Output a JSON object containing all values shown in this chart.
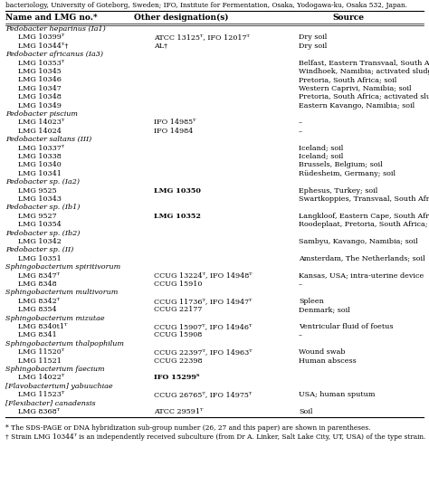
{
  "title_top": "bacteriology, University of Goteborg, Sweden; IFO, Institute for Fermentation, Osaka, Yodogawa-ku, Osaka 532, Japan.",
  "headers": [
    "Name and LMG no.*",
    "Other designation(s)",
    "Source"
  ],
  "rows": [
    {
      "name": "Pedobacter heparinus (Ia1)",
      "italic": true,
      "indent": 0,
      "other": "",
      "other_bold": false,
      "source": ""
    },
    {
      "name": "LMG 10399ᵀ",
      "italic": false,
      "indent": 1,
      "other": "ATCC 13125ᵀ, IFO 12017ᵀ",
      "other_bold": false,
      "source": "Dry soil"
    },
    {
      "name": "LMG 10344ᵀ†",
      "italic": false,
      "indent": 1,
      "other": "AL†",
      "other_bold": false,
      "source": "Dry soil"
    },
    {
      "name": "Pedobacter africanus (Ia3)",
      "italic": true,
      "indent": 0,
      "other": "",
      "other_bold": false,
      "source": ""
    },
    {
      "name": "LMG 10353ᵀ",
      "italic": false,
      "indent": 1,
      "other": "",
      "other_bold": false,
      "source": "Belfast, Eastern Transvaal, South Africa; soil"
    },
    {
      "name": "LMG 10345",
      "italic": false,
      "indent": 1,
      "other": "",
      "other_bold": false,
      "source": "Windhoek, Namibia; activated sludge"
    },
    {
      "name": "LMG 10346",
      "italic": false,
      "indent": 1,
      "other": "",
      "other_bold": false,
      "source": "Pretoria, South Africa; soil"
    },
    {
      "name": "LMG 10347",
      "italic": false,
      "indent": 1,
      "other": "",
      "other_bold": false,
      "source": "Western Caprivi, Namibia; soil"
    },
    {
      "name": "LMG 10348",
      "italic": false,
      "indent": 1,
      "other": "",
      "other_bold": false,
      "source": "Pretoria, South Africa; activated sludge"
    },
    {
      "name": "LMG 10349",
      "italic": false,
      "indent": 1,
      "other": "",
      "other_bold": false,
      "source": "Eastern Kavango, Namibia; soil"
    },
    {
      "name": "Pedobacter piscium",
      "italic": true,
      "indent": 0,
      "other": "",
      "other_bold": false,
      "source": ""
    },
    {
      "name": "LMG 14023ᵀ",
      "italic": false,
      "indent": 1,
      "other": "IFO 14985ᵀ",
      "other_bold": false,
      "source": "–"
    },
    {
      "name": "LMG 14024",
      "italic": false,
      "indent": 1,
      "other": "IFO 14984",
      "other_bold": false,
      "source": "–"
    },
    {
      "name": "Pedobacter saltans (III)",
      "italic": true,
      "indent": 0,
      "other": "",
      "other_bold": false,
      "source": ""
    },
    {
      "name": "LMG 10337ᵀ",
      "italic": false,
      "indent": 1,
      "other": "",
      "other_bold": false,
      "source": "Iceland; soil"
    },
    {
      "name": "LMG 10338",
      "italic": false,
      "indent": 1,
      "other": "",
      "other_bold": false,
      "source": "Iceland; soil"
    },
    {
      "name": "LMG 10340",
      "italic": false,
      "indent": 1,
      "other": "",
      "other_bold": false,
      "source": "Brussels, Belgium; soil"
    },
    {
      "name": "LMG 10341",
      "italic": false,
      "indent": 1,
      "other": "",
      "other_bold": false,
      "source": "Rüdesheim, Germany; soil"
    },
    {
      "name": "Pedobacter sp. (Ia2)",
      "italic": true,
      "indent": 0,
      "other": "",
      "other_bold": false,
      "source": ""
    },
    {
      "name": "LMG 9525",
      "italic": false,
      "indent": 1,
      "other": "LMG 10350",
      "other_bold": true,
      "source": "Ephesus, Turkey; soil"
    },
    {
      "name": "LMG 10343",
      "italic": false,
      "indent": 1,
      "other": "",
      "other_bold": false,
      "source": "Swartkoppies, Transvaal, South Africa; soil"
    },
    {
      "name": "Pedobacter sp. (Ib1)",
      "italic": true,
      "indent": 0,
      "other": "",
      "other_bold": false,
      "source": ""
    },
    {
      "name": "LMG 9527",
      "italic": false,
      "indent": 1,
      "other": "LMG 10352",
      "other_bold": true,
      "source": "Langkloof, Eastern Cape, South Africa; soil"
    },
    {
      "name": "LMG 10354",
      "italic": false,
      "indent": 1,
      "other": "",
      "other_bold": false,
      "source": "Roodeplaat, Pretoria, South Africa; soil"
    },
    {
      "name": "Pedobacter sp. (Ib2)",
      "italic": true,
      "indent": 0,
      "other": "",
      "other_bold": false,
      "source": ""
    },
    {
      "name": "LMG 10342",
      "italic": false,
      "indent": 1,
      "other": "",
      "other_bold": false,
      "source": "Sambyu, Kavango, Namibia; soil"
    },
    {
      "name": "Pedobacter sp. (II)",
      "italic": true,
      "indent": 0,
      "other": "",
      "other_bold": false,
      "source": ""
    },
    {
      "name": "LMG 10351",
      "italic": false,
      "indent": 1,
      "other": "",
      "other_bold": false,
      "source": "Amsterdam, The Netherlands; soil"
    },
    {
      "name": "Sphingobacterium spiritivorum",
      "italic": true,
      "indent": 0,
      "other": "",
      "other_bold": false,
      "source": ""
    },
    {
      "name": "LMG 8347ᵀ",
      "italic": false,
      "indent": 1,
      "other": "CCUG 13224ᵀ, IFO 14948ᵀ",
      "other_bold": false,
      "source": "Kansas, USA; intra-uterine device"
    },
    {
      "name": "LMG 8348",
      "italic": false,
      "indent": 1,
      "other": "CCUG 15910",
      "other_bold": false,
      "source": "–"
    },
    {
      "name": "Sphingobacterium multivorum",
      "italic": true,
      "indent": 0,
      "other": "",
      "other_bold": false,
      "source": ""
    },
    {
      "name": "LMG 8342ᵀ",
      "italic": false,
      "indent": 1,
      "other": "CCUG 11736ᵀ, IFO 14947ᵀ",
      "other_bold": false,
      "source": "Spleen"
    },
    {
      "name": "LMG 8354",
      "italic": false,
      "indent": 1,
      "other": "CCUG 22177",
      "other_bold": false,
      "source": "Denmark; soil"
    },
    {
      "name": "Sphingobacterium mizutae",
      "italic": true,
      "indent": 0,
      "other": "",
      "other_bold": false,
      "source": ""
    },
    {
      "name": "LMG 8340t1ᵀ",
      "italic": false,
      "indent": 1,
      "other": "CCUG 15907ᵀ, IFO 14946ᵀ",
      "other_bold": false,
      "source": "Ventricular fluid of foetus"
    },
    {
      "name": "LMG 8341",
      "italic": false,
      "indent": 1,
      "other": "CCUG 15908",
      "other_bold": false,
      "source": "–"
    },
    {
      "name": "Sphingobacterium thalpophilum",
      "italic": true,
      "indent": 0,
      "other": "",
      "other_bold": false,
      "source": ""
    },
    {
      "name": "LMG 11520ᵀ",
      "italic": false,
      "indent": 1,
      "other": "CCUG 22397ᵀ, IFO 14963ᵀ",
      "other_bold": false,
      "source": "Wound swab"
    },
    {
      "name": "LMG 11521",
      "italic": false,
      "indent": 1,
      "other": "CCUG 22398",
      "other_bold": false,
      "source": "Human abscess"
    },
    {
      "name": "Sphingobacterium faecium",
      "italic": true,
      "indent": 0,
      "other": "",
      "other_bold": false,
      "source": ""
    },
    {
      "name": "LMG 14022ᵀ",
      "italic": false,
      "indent": 1,
      "other": "IFO 15299ᵀ",
      "other_bold": true,
      "source": ""
    },
    {
      "name": "[Flavobacterium] yabuuchiae",
      "italic": true,
      "indent": 0,
      "other": "",
      "other_bold": false,
      "source": ""
    },
    {
      "name": "LMG 11523ᵀ",
      "italic": false,
      "indent": 1,
      "other": "CCUG 26765ᵀ, IFO 14975ᵀ",
      "other_bold": false,
      "source": "USA; human sputum"
    },
    {
      "name": "[Flexibacter] canadensis",
      "italic": true,
      "indent": 0,
      "other": "",
      "other_bold": false,
      "source": ""
    },
    {
      "name": "LMG 8368ᵀ",
      "italic": false,
      "indent": 1,
      "other": "ATCC 29591ᵀ",
      "other_bold": false,
      "source": "Soil"
    }
  ],
  "footnote1": "* The SDS-PAGE or DNA hybridization sub-group number (26, 27 and this paper) are shown in parentheses.",
  "footnote2": "† Strain LMG 10344ᵀ is an independently received subculture (from Dr A. Linker, Salt Lake City, UT, USA) of the type strain.",
  "figsize": [
    4.74,
    5.47
  ],
  "dpi": 100,
  "bg_color": "#ffffff",
  "text_color": "#000000"
}
